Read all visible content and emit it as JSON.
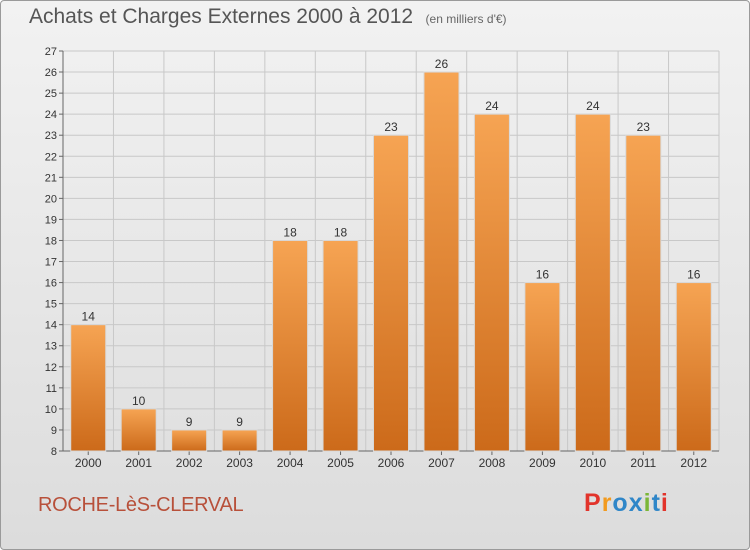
{
  "header": {
    "title": "Achats et Charges Externes 2000 à 2012",
    "subtitle": "(en milliers d'€)"
  },
  "footer": {
    "town": "ROCHE-LèS-CLERVAL",
    "brand": "Proxiti"
  },
  "colors": {
    "bar_light": "#f6a453",
    "bar_dark": "#cc6a1a",
    "grid": "#c8c8c8",
    "brand_letters": [
      "#e2342b",
      "#f29a1e",
      "#2f86c8",
      "#2f86c8",
      "#7bb637",
      "#2f86c8",
      "#e2342b"
    ]
  },
  "chart_data": {
    "type": "bar",
    "title": "Achats et Charges Externes 2000 à 2012",
    "subtitle": "(en milliers d'€)",
    "categories": [
      "2000",
      "2001",
      "2002",
      "2003",
      "2004",
      "2005",
      "2006",
      "2007",
      "2008",
      "2009",
      "2010",
      "2011",
      "2012"
    ],
    "values": [
      14,
      10,
      9,
      9,
      18,
      18,
      23,
      26,
      24,
      16,
      24,
      23,
      16
    ],
    "ylim": [
      8,
      27
    ],
    "yticks": [
      8,
      9,
      10,
      11,
      12,
      13,
      14,
      15,
      16,
      17,
      18,
      19,
      20,
      21,
      22,
      23,
      24,
      25,
      26,
      27
    ],
    "grid": true,
    "legend": "none"
  }
}
